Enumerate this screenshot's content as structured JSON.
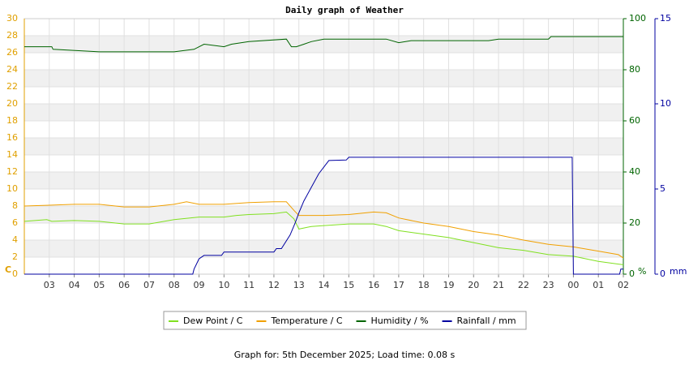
{
  "chart_data": {
    "type": "line",
    "title": "Daily graph of Weather",
    "footer": "Graph for: 5th December 2025; Load time: 0.08 s",
    "y_unit": "C",
    "y2_unit": "%",
    "y3_unit": "mm",
    "xlim": [
      2,
      26
    ],
    "xticks": [
      {
        "value": 3,
        "label": "03"
      },
      {
        "value": 4,
        "label": "04"
      },
      {
        "value": 5,
        "label": "05"
      },
      {
        "value": 6,
        "label": "06"
      },
      {
        "value": 7,
        "label": "07"
      },
      {
        "value": 8,
        "label": "08"
      },
      {
        "value": 9,
        "label": "09"
      },
      10,
      11,
      12,
      13,
      14,
      15,
      16,
      17,
      18,
      19,
      20,
      21,
      22,
      23,
      {
        "value": 24,
        "label": "00"
      },
      {
        "value": 25,
        "label": "01"
      },
      {
        "value": 26,
        "label": "02"
      }
    ],
    "ylim": [
      0,
      30
    ],
    "yticks": [
      0,
      2,
      4,
      6,
      8,
      10,
      12,
      14,
      16,
      18,
      20,
      22,
      24,
      26,
      28,
      30
    ],
    "y_color": "#e0a000",
    "y2lim": [
      0,
      100
    ],
    "y2ticks": [
      0,
      20,
      40,
      60,
      80,
      100
    ],
    "y2_color": "#006400",
    "y3lim": [
      0,
      15
    ],
    "y3ticks": [
      0,
      5,
      10,
      15
    ],
    "y3_color": "#0000a0",
    "grid": true,
    "series": [
      {
        "name": "Dew Point / C",
        "color": "#80e020",
        "axis": "y",
        "x": [
          2,
          2.9,
          3.1,
          4,
          5,
          6,
          7,
          8,
          9,
          10,
          10.5,
          11,
          12,
          12.5,
          12.8,
          13,
          13.5,
          14,
          15,
          16,
          16.5,
          17,
          18,
          19,
          20,
          21,
          22,
          23,
          24,
          25,
          26
        ],
        "values": [
          6.2,
          6.4,
          6.2,
          6.3,
          6.2,
          5.9,
          5.9,
          6.4,
          6.7,
          6.7,
          6.9,
          7.0,
          7.1,
          7.3,
          6.5,
          5.3,
          5.6,
          5.7,
          5.9,
          5.9,
          5.6,
          5.1,
          4.7,
          4.3,
          3.7,
          3.1,
          2.8,
          2.3,
          2.1,
          1.5,
          1.1
        ]
      },
      {
        "name": "Temperature / C",
        "color": "#f0a000",
        "axis": "y",
        "x": [
          2,
          3,
          4,
          5,
          6,
          7,
          8,
          8.5,
          9,
          10,
          11,
          12,
          12.5,
          12.8,
          13,
          14,
          15,
          16,
          16.5,
          17,
          18,
          19,
          20,
          21,
          22,
          23,
          24,
          25,
          25.8,
          26
        ],
        "values": [
          8.0,
          8.1,
          8.2,
          8.2,
          7.9,
          7.9,
          8.2,
          8.5,
          8.2,
          8.2,
          8.4,
          8.5,
          8.5,
          7.5,
          6.9,
          6.9,
          7.0,
          7.3,
          7.2,
          6.6,
          6.0,
          5.6,
          5.0,
          4.6,
          4.0,
          3.5,
          3.2,
          2.7,
          2.3,
          1.9
        ]
      },
      {
        "name": "Humidity / %",
        "color": "#006400",
        "axis": "y2",
        "x": [
          2,
          3.1,
          3.15,
          5,
          8,
          8.8,
          9.2,
          10,
          10.3,
          11,
          12.5,
          12.7,
          12.9,
          13.2,
          13.5,
          14,
          16.5,
          17,
          17.5,
          20.6,
          21,
          23,
          23.1,
          26
        ],
        "values": [
          89,
          89,
          88,
          87,
          87,
          88,
          90,
          89,
          90,
          91,
          92,
          89,
          89,
          90,
          91,
          92,
          92,
          90.6,
          91.4,
          91.4,
          92,
          92,
          93,
          93
        ]
      },
      {
        "name": "Rainfall / mm",
        "color": "#0000a0",
        "axis": "y3",
        "x": [
          2,
          8.75,
          8.8,
          8.9,
          9.0,
          9.2,
          9.9,
          10,
          12,
          12.1,
          12.3,
          12.65,
          12.85,
          13,
          13.2,
          13.5,
          13.8,
          14.2,
          14.9,
          15,
          23.95,
          24,
          25.85,
          25.9,
          26
        ],
        "values": [
          0,
          0,
          0.3,
          0.6,
          0.9,
          1.1,
          1.1,
          1.3,
          1.3,
          1.5,
          1.5,
          2.3,
          3.0,
          3.6,
          4.3,
          5.1,
          5.9,
          6.67,
          6.7,
          6.86,
          6.86,
          0,
          0,
          0.3,
          0.3
        ]
      }
    ]
  }
}
